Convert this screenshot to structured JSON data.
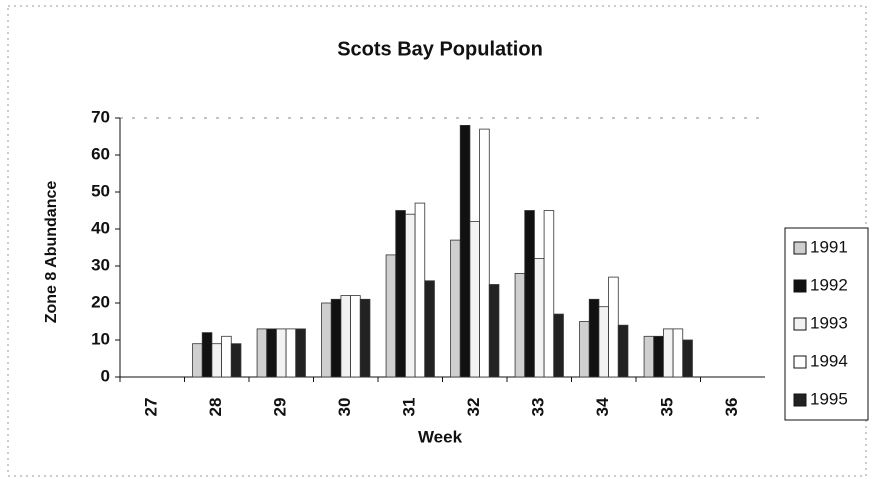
{
  "chart_data": {
    "type": "bar",
    "title": "Scots Bay Population",
    "x_label": "Week",
    "y_label": "Zone 8 Abundance",
    "categories": [
      "27",
      "28",
      "29",
      "30",
      "31",
      "32",
      "33",
      "34",
      "35",
      "36"
    ],
    "series": [
      {
        "name": "1991",
        "color": "#cfcfcf",
        "values": [
          null,
          9,
          13,
          20,
          33,
          37,
          28,
          15,
          11,
          null
        ]
      },
      {
        "name": "1992",
        "color": "#111111",
        "values": [
          null,
          12,
          13,
          21,
          45,
          68,
          45,
          21,
          11,
          null
        ]
      },
      {
        "name": "1993",
        "color": "#f2f2f2",
        "values": [
          null,
          9,
          13,
          22,
          44,
          42,
          32,
          19,
          13,
          null
        ]
      },
      {
        "name": "1994",
        "color": "#ffffff",
        "values": [
          null,
          11,
          13,
          22,
          47,
          67,
          45,
          27,
          13,
          null
        ]
      },
      {
        "name": "1995",
        "color": "#222222",
        "values": [
          null,
          9,
          13,
          21,
          26,
          25,
          17,
          14,
          10,
          null
        ]
      }
    ],
    "ylim": [
      0,
      70
    ],
    "yticks": [
      0,
      10,
      20,
      30,
      40,
      50,
      60,
      70
    ],
    "grid": false,
    "legend": "right"
  }
}
